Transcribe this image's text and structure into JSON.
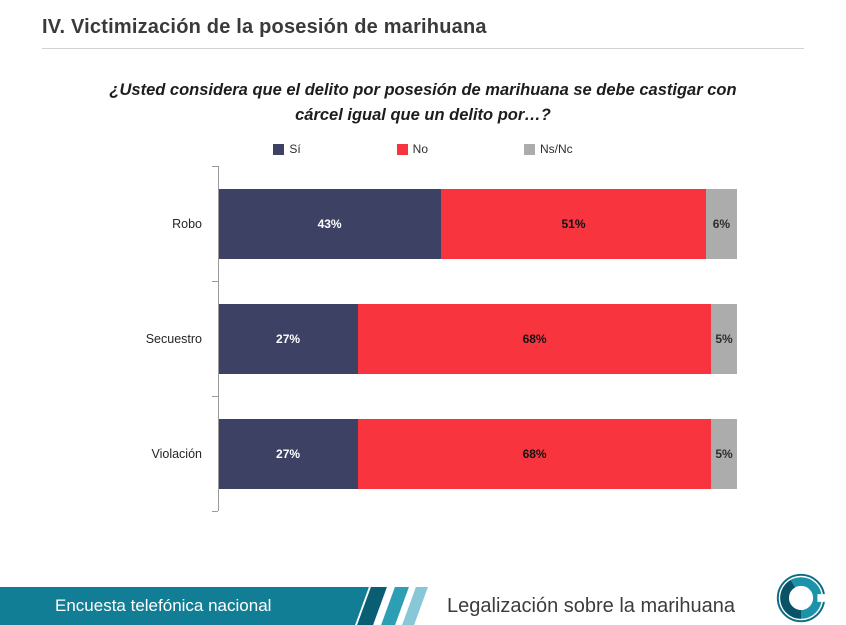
{
  "page": {
    "title": "IV. Victimización de la posesión de marihuana",
    "question_line1": "¿Usted considera que el delito por posesión de marihuana se debe castigar con",
    "question_line2": "cárcel igual que un delito por…?"
  },
  "chart_data": {
    "type": "bar",
    "orientation": "horizontal",
    "stacked": true,
    "title": "¿Usted considera que el delito por posesión de marihuana se debe castigar con cárcel igual que un delito por…?",
    "categories": [
      "Robo",
      "Secuestro",
      "Violación"
    ],
    "series": [
      {
        "name": "Sí",
        "color": "#3D4265",
        "label_color": "#ffffff",
        "values": [
          43,
          27,
          27
        ]
      },
      {
        "name": "No",
        "color": "#F8353F",
        "label_color": "#111111",
        "values": [
          51,
          68,
          68
        ]
      },
      {
        "name": "Ns/Nc",
        "color": "#ACACAC",
        "label_color": "#2e2e2e",
        "values": [
          6,
          5,
          5
        ]
      }
    ],
    "value_suffix": "%",
    "xlim": [
      0,
      100
    ],
    "legend_position": "top",
    "grid": false
  },
  "footer": {
    "left_label": "Encuesta telefónica nacional",
    "right_label": "Legalización sobre la marihuana",
    "teal": "#117E95",
    "stripe_dark": "#0A5E74",
    "stripe_mid": "#2D9FB5",
    "stripe_light": "#87C7D6"
  }
}
